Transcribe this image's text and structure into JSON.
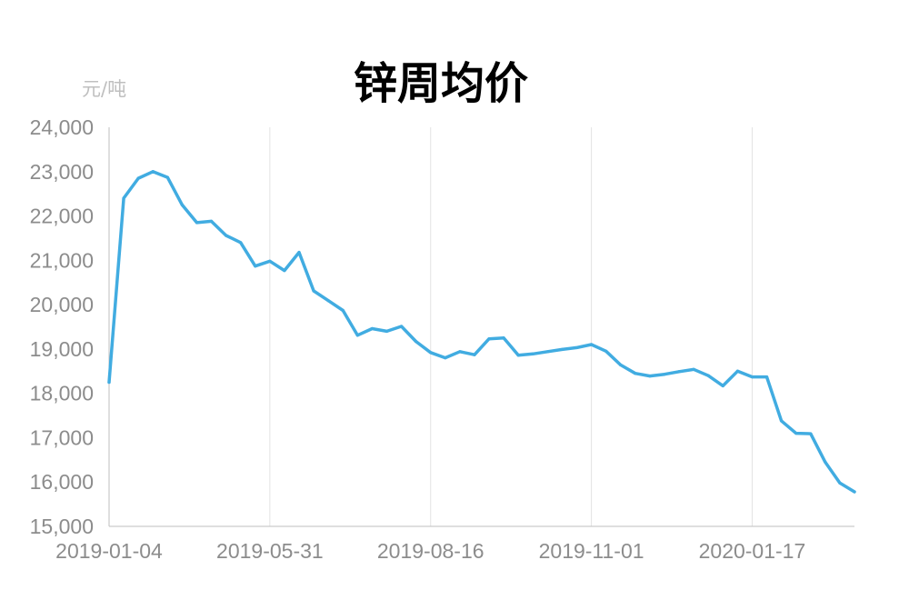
{
  "chart_data": {
    "type": "line",
    "title": "锌周均价",
    "unit_label": "元/吨",
    "ylim": [
      15000,
      24000
    ],
    "y_ticks": [
      "15,000",
      "16,000",
      "17,000",
      "18,000",
      "19,000",
      "20,000",
      "21,000",
      "22,000",
      "23,000",
      "24,000"
    ],
    "x_tick_labels": [
      "2019-01-04",
      "2019-05-31",
      "2019-08-16",
      "2019-11-01",
      "2020-01-17"
    ],
    "x_tick_positions": [
      0,
      11,
      22,
      33,
      44
    ],
    "grid": "vertical",
    "line_color": "#41ACE1",
    "series": [
      {
        "values": [
          18250,
          22400,
          22850,
          23000,
          22870,
          22250,
          21850,
          21880,
          21560,
          21400,
          20870,
          20980,
          20770,
          21180,
          20310,
          20090,
          19870,
          19310,
          19460,
          19400,
          19510,
          19170,
          18920,
          18800,
          18940,
          18870,
          19230,
          19250,
          18860,
          18890,
          18940,
          18990,
          19030,
          19100,
          18950,
          18640,
          18450,
          18390,
          18430,
          18490,
          18540,
          18400,
          18170,
          18500,
          18370,
          18370,
          17380,
          17100,
          17090,
          16450,
          15980,
          15780
        ]
      }
    ]
  }
}
